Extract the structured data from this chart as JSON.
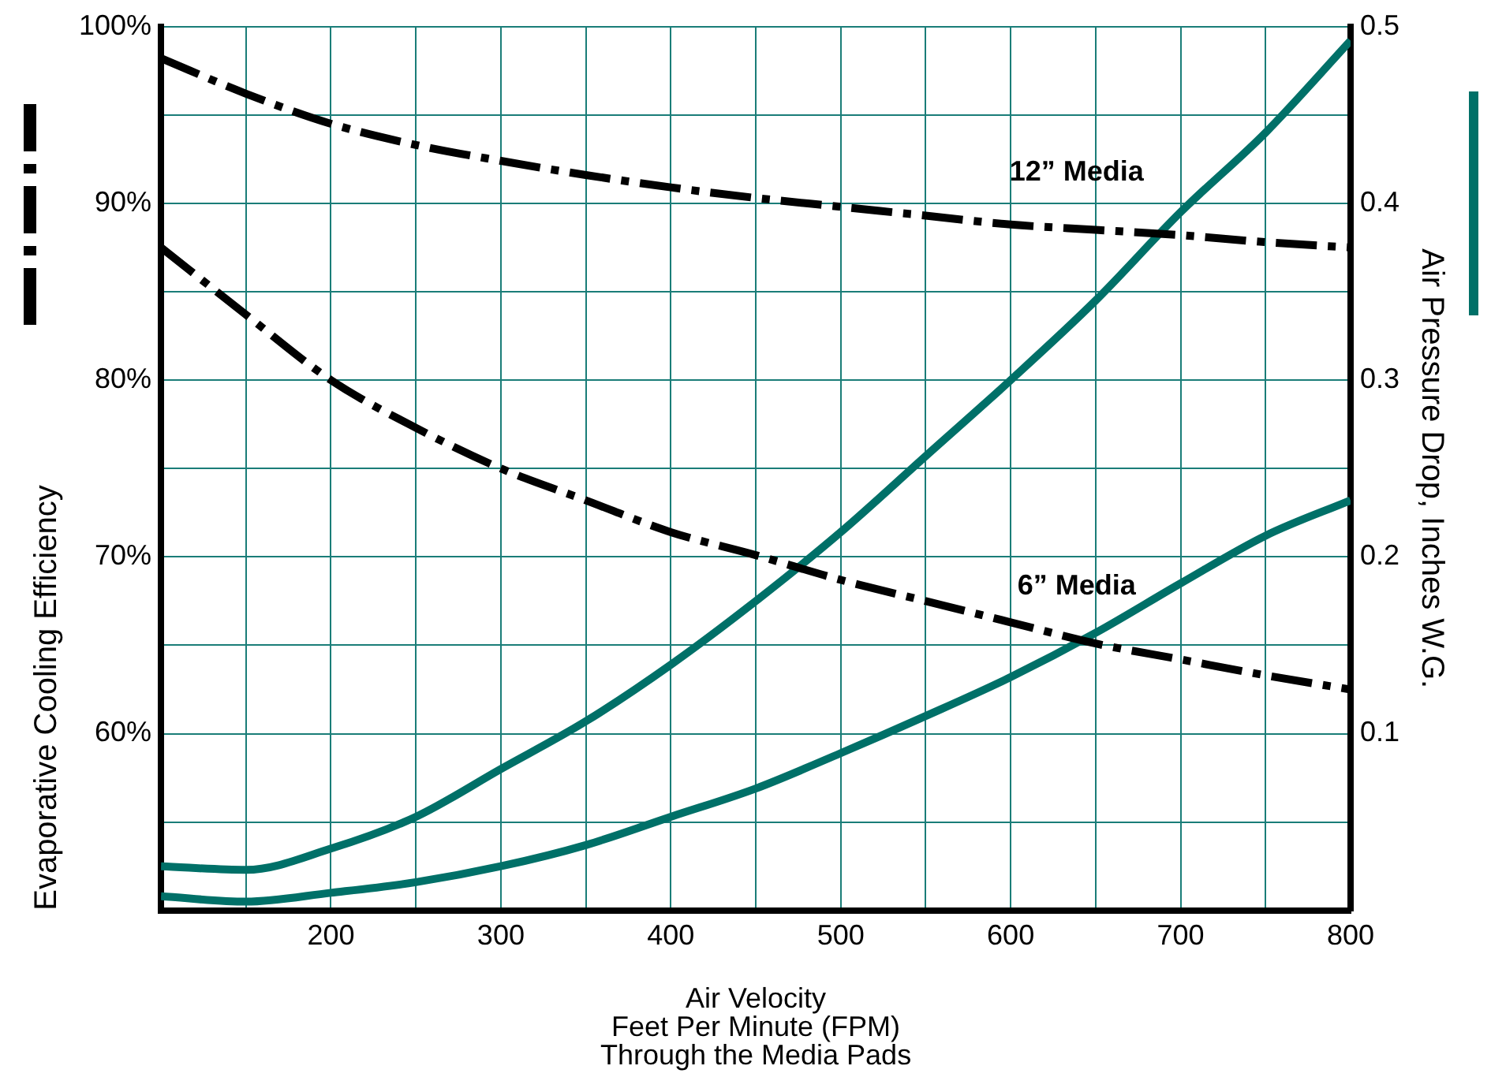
{
  "chart_data": {
    "type": "line",
    "xlabel": "Air Velocity\nFeet Per Minute (FPM)\nThrough the Media Pads",
    "ylabel": "Evaporative Cooling Efficiency",
    "y2label": "Air Pressure Drop, Inches W.G.",
    "x": [
      100,
      150,
      200,
      250,
      300,
      350,
      400,
      450,
      500,
      550,
      600,
      650,
      700,
      750,
      800
    ],
    "series": [
      {
        "name": "12” Media",
        "color": "#000000",
        "line_style": "dashed",
        "values": [
          98.2,
          96.2,
          94.5,
          93.3,
          92.4,
          91.6,
          90.9,
          90.3,
          89.8,
          89.3,
          88.8,
          88.5,
          88.2,
          87.8,
          87.5
        ]
      },
      {
        "name": "6” Media",
        "color": "#000000",
        "line_style": "dashed",
        "values": [
          87.5,
          83.7,
          80,
          77.3,
          75,
          73.2,
          71.4,
          70.1,
          68.7,
          67.5,
          66.3,
          65.1,
          64.2,
          63.3,
          62.5
        ]
      },
      {
        "color": "#007068",
        "line_style": "solid",
        "axis": "y2",
        "values": [
          0.025,
          0.023,
          0.035,
          0.053,
          0.08,
          0.107,
          0.139,
          0.175,
          0.214,
          0.257,
          0.3,
          0.345,
          0.395,
          0.44,
          0.492
        ]
      },
      {
        "color": "#007068",
        "line_style": "solid",
        "axis": "y2",
        "values": [
          0.008,
          0.005,
          0.01,
          0.016,
          0.025,
          0.037,
          0.053,
          0.069,
          0.089,
          0.11,
          0.132,
          0.157,
          0.185,
          0.212,
          0.232
        ]
      }
    ],
    "xlim": [
      100,
      800
    ],
    "xticks": [
      {
        "value": 150,
        "label": null
      },
      200,
      {
        "value": 250,
        "label": null
      },
      300,
      {
        "value": 350,
        "label": null
      },
      400,
      {
        "value": 450,
        "label": null
      },
      500,
      {
        "value": 550,
        "label": null
      },
      600,
      {
        "value": 650,
        "label": null
      },
      700,
      {
        "value": 750,
        "label": null
      },
      800
    ],
    "ylim": [
      50,
      100
    ],
    "yticks": [
      {
        "value": 55,
        "label": null
      },
      {
        "value": 60,
        "label": "60%"
      },
      {
        "value": 65,
        "label": null
      },
      {
        "value": 70,
        "label": "70%"
      },
      {
        "value": 75,
        "label": null
      },
      {
        "value": 80,
        "label": "80%"
      },
      {
        "value": 85,
        "label": null
      },
      {
        "value": 90,
        "label": "90%"
      },
      {
        "value": 95,
        "label": null
      },
      {
        "value": 100,
        "label": "100%"
      }
    ],
    "y2lim": [
      0,
      0.5
    ],
    "y2ticks": [
      0.1,
      0.2,
      0.3,
      0.4,
      0.5
    ],
    "grid": true,
    "legend": false,
    "marker": "none"
  }
}
